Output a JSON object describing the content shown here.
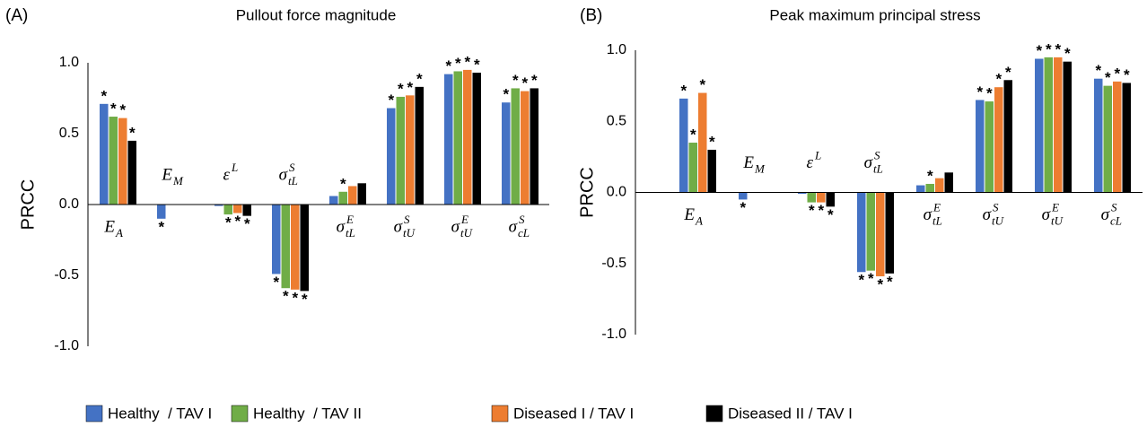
{
  "chart_data": [
    {
      "type": "bar",
      "panel_label": "(A)",
      "title": "Pullout force magnitude",
      "y_label": "PRCC",
      "categories": [
        {
          "main": "E",
          "sub": "A"
        },
        {
          "main": "E",
          "sub": "M"
        },
        {
          "main": "ε",
          "sup": "L"
        },
        {
          "main": "σ",
          "sub": "tL",
          "sup": "S"
        },
        {
          "main": "σ",
          "sub": "tL",
          "sup": "E"
        },
        {
          "main": "σ",
          "sub": "tU",
          "sup": "S"
        },
        {
          "main": "σ",
          "sub": "tU",
          "sup": "E"
        },
        {
          "main": "σ",
          "sub": "cL",
          "sup": "S"
        }
      ],
      "series": [
        {
          "name": "Healthy  / TAV I",
          "color": "#4472c4",
          "values": [
            0.71,
            -0.1,
            -0.01,
            -0.49,
            0.06,
            0.68,
            0.92,
            0.72
          ],
          "annotations": [
            "*",
            "*",
            null,
            "*",
            null,
            "*",
            "*",
            "*"
          ]
        },
        {
          "name": "Healthy  / TAV II",
          "color": "#70ad47",
          "values": [
            0.62,
            0,
            -0.07,
            -0.59,
            0.09,
            0.76,
            0.94,
            0.82
          ],
          "annotations": [
            "*",
            null,
            "*",
            "*",
            "*",
            "*",
            "*",
            "*"
          ]
        },
        {
          "name": "Diseased I / TAV I",
          "color": "#ed7d31",
          "values": [
            0.61,
            0,
            -0.06,
            -0.6,
            0.13,
            0.77,
            0.95,
            0.8
          ],
          "annotations": [
            "*",
            null,
            "*",
            "*",
            null,
            "*",
            "*",
            "*"
          ]
        },
        {
          "name": "Diseased II / TAV I",
          "color": "#000000",
          "values": [
            0.45,
            0,
            -0.08,
            -0.61,
            0.15,
            0.83,
            0.93,
            0.82
          ],
          "annotations": [
            "*",
            null,
            "*",
            "*",
            null,
            "*",
            "*",
            "*"
          ]
        }
      ],
      "ylim": [
        -1,
        1
      ],
      "yticks": [
        {
          "value": -1,
          "label": "-1.0"
        },
        {
          "value": -0.5,
          "label": "-0.5"
        },
        {
          "value": 0,
          "label": "0.0"
        },
        {
          "value": 0.5,
          "label": "0.5"
        },
        {
          "value": 1,
          "label": "1.0"
        }
      ]
    },
    {
      "type": "bar",
      "panel_label": "(B)",
      "title": "Peak maximum principal stress",
      "y_label": "PRCC",
      "categories": [
        {
          "main": "E",
          "sub": "A"
        },
        {
          "main": "E",
          "sub": "M"
        },
        {
          "main": "ε",
          "sup": "L"
        },
        {
          "main": "σ",
          "sub": "tL",
          "sup": "S"
        },
        {
          "main": "σ",
          "sub": "tL",
          "sup": "E"
        },
        {
          "main": "σ",
          "sub": "tU",
          "sup": "S"
        },
        {
          "main": "σ",
          "sub": "tU",
          "sup": "E"
        },
        {
          "main": "σ",
          "sub": "cL",
          "sup": "S"
        }
      ],
      "series": [
        {
          "color": "#4472c4",
          "values": [
            0.66,
            -0.05,
            -0.01,
            -0.56,
            0.05,
            0.65,
            0.94,
            0.8
          ],
          "annotations": [
            "*",
            "*",
            null,
            "*",
            null,
            "*",
            "*",
            "*"
          ]
        },
        {
          "color": "#70ad47",
          "values": [
            0.35,
            0,
            -0.07,
            -0.55,
            0.06,
            0.64,
            0.95,
            0.75
          ],
          "annotations": [
            "*",
            null,
            "*",
            "*",
            "*",
            "*",
            "*",
            "*"
          ]
        },
        {
          "color": "#ed7d31",
          "values": [
            0.7,
            0,
            -0.07,
            -0.59,
            0.1,
            0.74,
            0.95,
            0.78
          ],
          "annotations": [
            "*",
            null,
            "*",
            "*",
            null,
            "*",
            "*",
            "*"
          ]
        },
        {
          "color": "#000000",
          "values": [
            0.3,
            0,
            -0.1,
            -0.57,
            0.14,
            0.79,
            0.92,
            0.77
          ],
          "annotations": [
            "*",
            null,
            "*",
            "*",
            null,
            "*",
            "*",
            "*"
          ]
        }
      ],
      "ylim": [
        -1,
        1
      ],
      "yticks": [
        {
          "value": -1,
          "label": "-1.0"
        },
        {
          "value": -0.5,
          "label": "-0.5"
        },
        {
          "value": 0,
          "label": "0.0"
        },
        {
          "value": 0.5,
          "label": "0.5"
        },
        {
          "value": 1,
          "label": "1.0"
        }
      ]
    }
  ]
}
